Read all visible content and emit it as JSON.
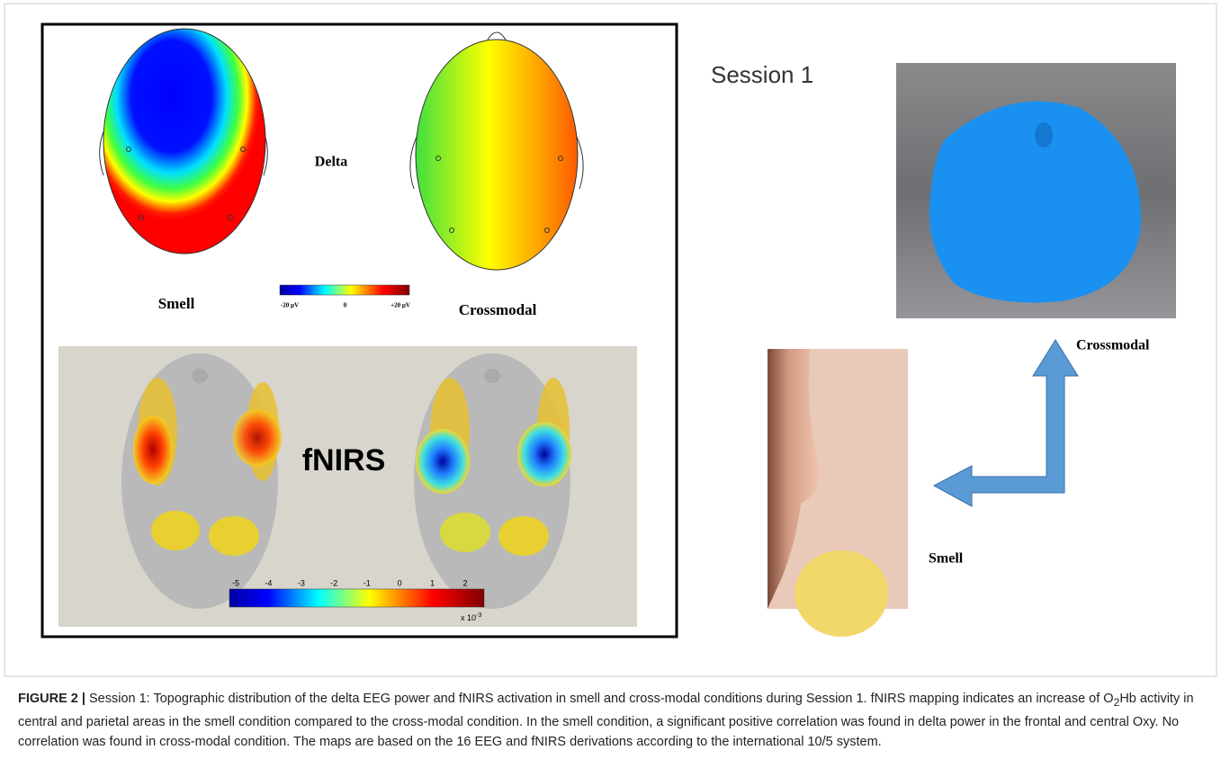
{
  "figure": {
    "eeg": {
      "band_label": "Delta",
      "left_label": "Smell",
      "right_label": "Crossmodal",
      "colorbar_labels": [
        "-20 µV",
        "0",
        "+20 µV"
      ]
    },
    "fnirs": {
      "label": "fNIRS",
      "colorbar_labels": [
        "-5",
        "-4",
        "-3",
        "-2",
        "-1",
        "0",
        "1",
        "2"
      ],
      "scale_base": "x 10",
      "scale_exponent": "-3"
    },
    "session": "Session 1",
    "photo_labels": {
      "top": "Crossmodal",
      "bottom": "Smell"
    }
  },
  "caption": {
    "label": "FIGURE 2 |",
    "text_before": " Session 1: Topographic distribution of the delta EEG power and fNIRS activation in smell and cross-modal conditions during Session 1. fNIRS mapping indicates an increase of O",
    "subscript": "2",
    "text_after": "Hb activity in central and parietal areas in the smell condition compared to the cross-modal condition. In the smell condition, a significant positive correlation was found in delta power in the frontal and central Oxy. No correlation was found in cross-modal condition. The maps are based on the 16 EEG and fNIRS derivations according to the international 10/5 system."
  }
}
